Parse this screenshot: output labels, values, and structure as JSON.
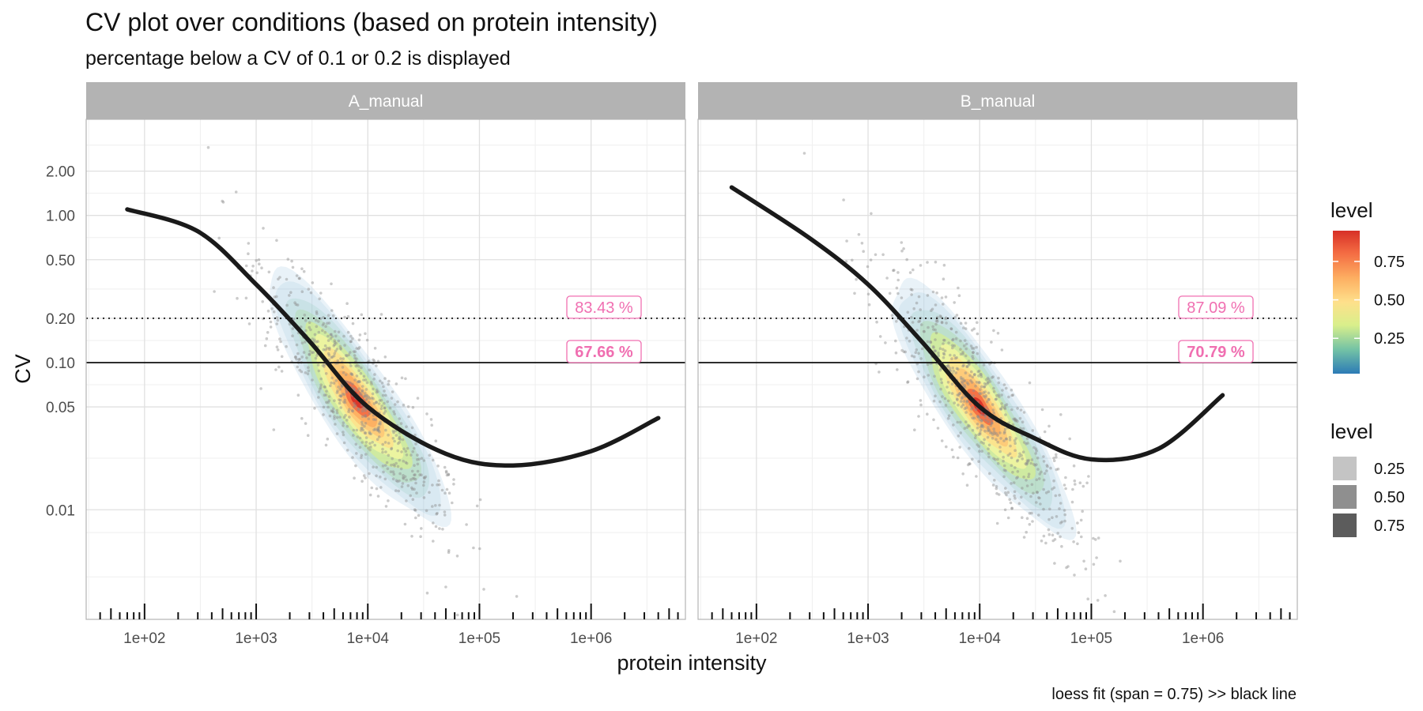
{
  "chart_data": {
    "type": "scatter",
    "title": "CV plot over conditions (based on protein intensity)",
    "subtitle": "percentage below a CV of 0.1 or 0.2 is displayed",
    "xlabel": "protein intensity",
    "ylabel": "CV",
    "caption": "loess fit (span = 0.75) >> black line",
    "x_scale": "log10",
    "y_scale": "log10",
    "xlim": [
      30,
      7000000
    ],
    "ylim": [
      0.0018,
      4.5
    ],
    "x_ticks": [
      100,
      1000,
      10000,
      100000,
      1000000
    ],
    "x_tick_labels": [
      "1e+02",
      "1e+03",
      "1e+04",
      "1e+05",
      "1e+06"
    ],
    "y_ticks": [
      0.01,
      0.05,
      0.1,
      0.2,
      0.5,
      1.0,
      2.0
    ],
    "y_tick_labels": [
      "0.01",
      "0.05",
      "0.10",
      "0.20",
      "0.50",
      "1.00",
      "2.00"
    ],
    "reference_lines": [
      {
        "y": 0.1,
        "style": "solid"
      },
      {
        "y": 0.2,
        "style": "dotted"
      }
    ],
    "grid": true,
    "colors": {
      "strip": "#b3b3b3",
      "annotation": "#f06fb1",
      "loess": "#1a1a1a",
      "points": "#8c8c8c",
      "palette": [
        "#2c7bb6",
        "#74c3a5",
        "#d9ef8b",
        "#fee08b",
        "#fdae61",
        "#f46d43",
        "#d73027"
      ]
    },
    "panels": [
      {
        "name": "A_manual",
        "annotations": [
          {
            "label": "83.43 %",
            "y": 0.2,
            "bold": false
          },
          {
            "label": "67.66 %",
            "y": 0.1,
            "bold": true
          }
        ],
        "density_center": {
          "log10_intensity": 3.9,
          "log10_cv": -1.25
        },
        "loess": [
          {
            "x": 70,
            "y": 1.1
          },
          {
            "x": 300,
            "y": 0.78
          },
          {
            "x": 1000,
            "y": 0.34
          },
          {
            "x": 3000,
            "y": 0.14
          },
          {
            "x": 10000,
            "y": 0.05
          },
          {
            "x": 50000,
            "y": 0.024
          },
          {
            "x": 200000,
            "y": 0.02
          },
          {
            "x": 1000000,
            "y": 0.025
          },
          {
            "x": 4000000,
            "y": 0.042
          }
        ]
      },
      {
        "name": "B_manual",
        "annotations": [
          {
            "label": "87.09 %",
            "y": 0.2,
            "bold": false
          },
          {
            "label": "70.79 %",
            "y": 0.1,
            "bold": true
          }
        ],
        "density_center": {
          "log10_intensity": 4.0,
          "log10_cv": -1.3
        },
        "loess": [
          {
            "x": 60,
            "y": 1.55
          },
          {
            "x": 300,
            "y": 0.7
          },
          {
            "x": 1000,
            "y": 0.34
          },
          {
            "x": 3000,
            "y": 0.14
          },
          {
            "x": 10000,
            "y": 0.05
          },
          {
            "x": 30000,
            "y": 0.031
          },
          {
            "x": 100000,
            "y": 0.022
          },
          {
            "x": 400000,
            "y": 0.026
          },
          {
            "x": 1500000,
            "y": 0.06
          }
        ]
      }
    ],
    "legends": [
      {
        "title": "level",
        "type": "colorbar",
        "min": 0.02,
        "max": 0.95,
        "ticks": [
          0.25,
          0.5,
          0.75
        ],
        "tick_labels": [
          "0.25",
          "0.50",
          "0.75"
        ]
      },
      {
        "title": "level",
        "type": "alpha",
        "levels": [
          0.25,
          0.5,
          0.75
        ],
        "labels": [
          "0.25",
          "0.50",
          "0.75"
        ]
      }
    ]
  }
}
